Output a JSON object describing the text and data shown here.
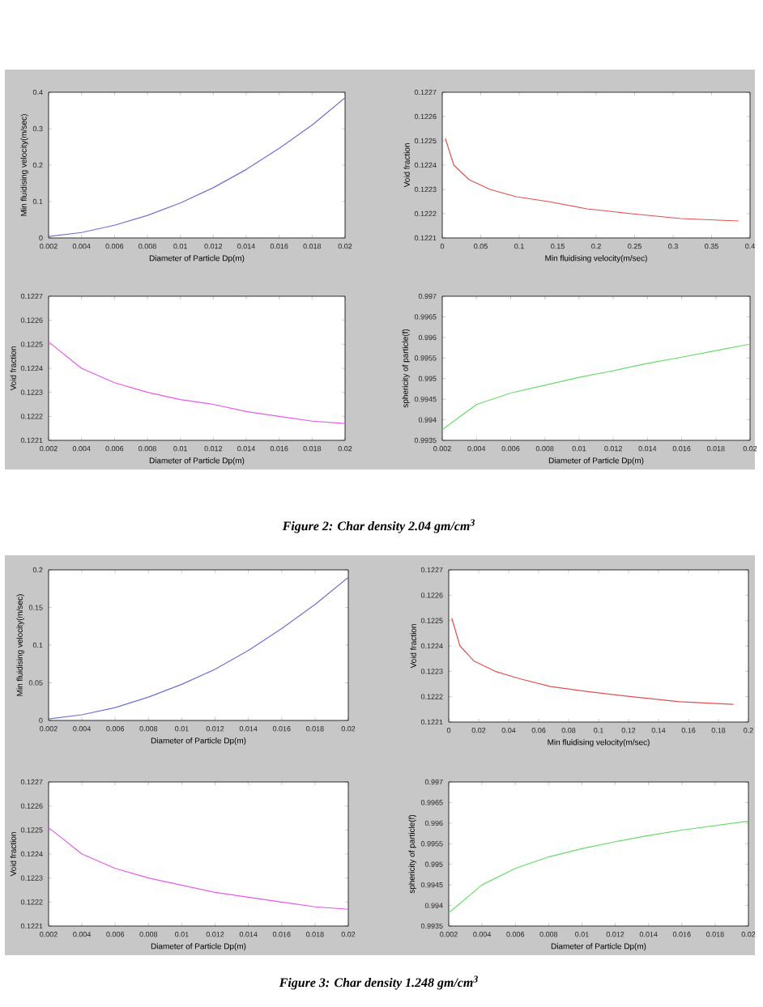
{
  "chart_data": [
    {
      "type": "line",
      "xlabel": "Diameter of Particle Dp(m)",
      "ylabel": "Min fluidising velocity(m/sec)",
      "xlim": [
        0.002,
        0.02
      ],
      "ylim": [
        0,
        0.4
      ],
      "xticks": [
        0.002,
        0.004,
        0.006,
        0.008,
        0.01,
        0.012,
        0.014,
        0.016,
        0.018,
        0.02
      ],
      "yticks": [
        0,
        0.1,
        0.2,
        0.3,
        0.4
      ],
      "annotations": [
        "Figure 2: Char density 2.04 gm/cm$^{3}$"
      ],
      "series": [
        {
          "color": "#6f6fd8",
          "x": [
            0.002,
            0.004,
            0.006,
            0.008,
            0.01,
            0.012,
            0.014,
            0.016,
            0.018,
            0.02
          ],
          "values": [
            0.004,
            0.015,
            0.035,
            0.062,
            0.096,
            0.138,
            0.188,
            0.246,
            0.31,
            0.385
          ]
        }
      ]
    },
    {
      "type": "line",
      "xlabel": "Min fluidising velocity(m/sec)",
      "ylabel": "Void fraction",
      "xlim": [
        0,
        0.4
      ],
      "ylim": [
        0.1221,
        0.1227
      ],
      "xticks": [
        0,
        0.05,
        0.1,
        0.15,
        0.2,
        0.25,
        0.3,
        0.35,
        0.4
      ],
      "yticks": [
        0.1221,
        0.1222,
        0.1223,
        0.1224,
        0.1225,
        0.1226,
        0.1227
      ],
      "series": [
        {
          "color": "#e05050",
          "x": [
            0.004,
            0.015,
            0.035,
            0.062,
            0.096,
            0.138,
            0.188,
            0.246,
            0.31,
            0.385
          ],
          "values": [
            0.12251,
            0.1224,
            0.12234,
            0.1223,
            0.12227,
            0.12225,
            0.12222,
            0.1222,
            0.12218,
            0.12217
          ]
        }
      ]
    },
    {
      "type": "line",
      "xlabel": "Diameter of Particle Dp(m)",
      "ylabel": "Void fraction",
      "xlim": [
        0.002,
        0.02
      ],
      "ylim": [
        0.1221,
        0.1227
      ],
      "xticks": [
        0.002,
        0.004,
        0.006,
        0.008,
        0.01,
        0.012,
        0.014,
        0.016,
        0.018,
        0.02
      ],
      "yticks": [
        0.1221,
        0.1222,
        0.1223,
        0.1224,
        0.1225,
        0.1226,
        0.1227
      ],
      "series": [
        {
          "color": "#e858e8",
          "x": [
            0.002,
            0.004,
            0.006,
            0.008,
            0.01,
            0.012,
            0.014,
            0.016,
            0.018,
            0.02
          ],
          "values": [
            0.12251,
            0.1224,
            0.12234,
            0.1223,
            0.12227,
            0.12225,
            0.12222,
            0.1222,
            0.12218,
            0.12217
          ]
        }
      ]
    },
    {
      "type": "line",
      "xlabel": "Diameter of Particle Dp(m)",
      "ylabel": "sphericity of particle(f)",
      "xlim": [
        0.002,
        0.02
      ],
      "ylim": [
        0.9935,
        0.997
      ],
      "xticks": [
        0.002,
        0.004,
        0.006,
        0.008,
        0.01,
        0.012,
        0.014,
        0.016,
        0.018,
        0.02
      ],
      "yticks": [
        0.9935,
        0.994,
        0.9945,
        0.995,
        0.9955,
        0.996,
        0.9965,
        0.997
      ],
      "series": [
        {
          "color": "#66dd66",
          "x": [
            0.002,
            0.004,
            0.006,
            0.008,
            0.01,
            0.012,
            0.014,
            0.016,
            0.018,
            0.02
          ],
          "values": [
            0.99376,
            0.99437,
            0.99465,
            0.99484,
            0.99503,
            0.99519,
            0.99537,
            0.99552,
            0.99568,
            0.99584
          ]
        }
      ]
    },
    {
      "type": "line",
      "xlabel": "Diameter of Particle Dp(m)",
      "ylabel": "Min fluidising velocity(m/sec)",
      "xlim": [
        0.002,
        0.02
      ],
      "ylim": [
        0,
        0.2
      ],
      "xticks": [
        0.002,
        0.004,
        0.006,
        0.008,
        0.01,
        0.012,
        0.014,
        0.016,
        0.018,
        0.02
      ],
      "yticks": [
        0,
        0.05,
        0.1,
        0.15,
        0.2
      ],
      "annotations": [
        "Figure 3: Char density 1.248 gm/cm$^{3}$"
      ],
      "series": [
        {
          "color": "#6f6fd8",
          "x": [
            0.002,
            0.004,
            0.006,
            0.008,
            0.01,
            0.012,
            0.014,
            0.016,
            0.018,
            0.02
          ],
          "values": [
            0.002,
            0.0075,
            0.017,
            0.031,
            0.048,
            0.068,
            0.093,
            0.122,
            0.154,
            0.19
          ]
        }
      ]
    },
    {
      "type": "line",
      "xlabel": "Min fluidising velocity(m/sec)",
      "ylabel": "Void fraction",
      "xlim": [
        0,
        0.2
      ],
      "ylim": [
        0.1221,
        0.1227
      ],
      "xticks": [
        0,
        0.02,
        0.04,
        0.06,
        0.08,
        0.1,
        0.12,
        0.14,
        0.16,
        0.18,
        0.2
      ],
      "yticks": [
        0.1221,
        0.1222,
        0.1223,
        0.1224,
        0.1225,
        0.1226,
        0.1227
      ],
      "series": [
        {
          "color": "#e05050",
          "x": [
            0.002,
            0.0075,
            0.017,
            0.031,
            0.048,
            0.068,
            0.093,
            0.122,
            0.154,
            0.19
          ],
          "values": [
            0.12251,
            0.1224,
            0.12234,
            0.1223,
            0.12227,
            0.12224,
            0.12222,
            0.1222,
            0.12218,
            0.12217
          ]
        }
      ]
    },
    {
      "type": "line",
      "xlabel": "Diameter of Particle Dp(m)",
      "ylabel": "Void fraction",
      "xlim": [
        0.002,
        0.02
      ],
      "ylim": [
        0.1221,
        0.1227
      ],
      "xticks": [
        0.002,
        0.004,
        0.006,
        0.008,
        0.01,
        0.012,
        0.014,
        0.016,
        0.018,
        0.02
      ],
      "yticks": [
        0.1221,
        0.1222,
        0.1223,
        0.1224,
        0.1225,
        0.1226,
        0.1227
      ],
      "series": [
        {
          "color": "#e858e8",
          "x": [
            0.002,
            0.004,
            0.006,
            0.008,
            0.01,
            0.012,
            0.014,
            0.016,
            0.018,
            0.02
          ],
          "values": [
            0.12251,
            0.1224,
            0.12234,
            0.1223,
            0.12227,
            0.12224,
            0.12222,
            0.1222,
            0.12218,
            0.12217
          ]
        }
      ]
    },
    {
      "type": "line",
      "xlabel": "Diameter of Particle Dp(m)",
      "ylabel": "sphericity of particle(f)",
      "xlim": [
        0.002,
        0.02
      ],
      "ylim": [
        0.9935,
        0.997
      ],
      "xticks": [
        0.002,
        0.004,
        0.006,
        0.008,
        0.01,
        0.012,
        0.014,
        0.016,
        0.018,
        0.02
      ],
      "yticks": [
        0.9935,
        0.994,
        0.9945,
        0.995,
        0.9955,
        0.996,
        0.9965,
        0.997
      ],
      "series": [
        {
          "color": "#66dd66",
          "x": [
            0.002,
            0.004,
            0.006,
            0.008,
            0.01,
            0.012,
            0.014,
            0.016,
            0.018,
            0.02
          ],
          "values": [
            0.99382,
            0.9945,
            0.9949,
            0.99518,
            0.99538,
            0.99555,
            0.9957,
            0.99583,
            0.99594,
            0.99605
          ]
        }
      ]
    }
  ]
}
